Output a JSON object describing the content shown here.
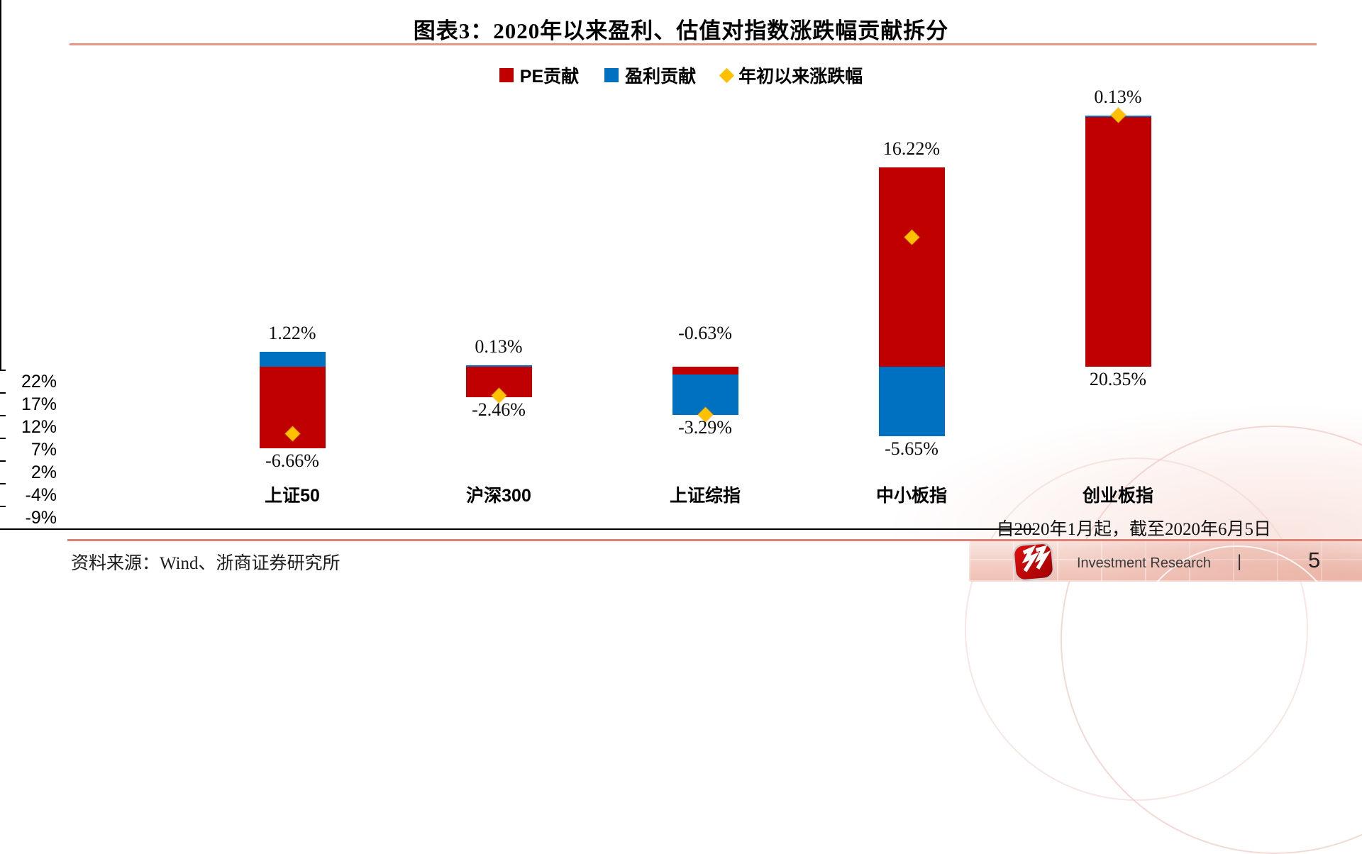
{
  "page": {
    "title": "图表3：2020年以来盈利、估值对指数涨跌幅贡献拆分",
    "note": "自2020年1月起，截至2020年6月5日",
    "source": "资料来源：Wind、浙商证券研究所",
    "footer": {
      "brand": "Investment Research",
      "divider": "|",
      "page_number": "5",
      "logo": "zheshang-securities-logo"
    }
  },
  "colors": {
    "pe": "#C00000",
    "earnings": "#0070C0",
    "ytd": "#FFC000",
    "rule_top": "#E59488",
    "rule_bottom": "#DC8176"
  },
  "chart_data": {
    "type": "bar",
    "stacked": true,
    "title": "图表3：2020年以来盈利、估值对指数涨跌幅贡献拆分",
    "categories": [
      "上证50",
      "沪深300",
      "上证综指",
      "中小板指",
      "创业板指"
    ],
    "series": [
      {
        "name": "PE贡献",
        "type": "bar",
        "color": "#C00000",
        "values": [
          -6.66,
          -2.46,
          -0.63,
          16.22,
          20.35
        ]
      },
      {
        "name": "盈利贡献",
        "type": "bar",
        "color": "#0070C0",
        "values": [
          1.22,
          0.13,
          -3.29,
          -5.65,
          0.13
        ]
      },
      {
        "name": "年初以来涨跌幅",
        "type": "scatter",
        "marker": "diamond",
        "color": "#FFC000",
        "values": [
          -5.44,
          -2.33,
          -3.92,
          10.57,
          20.48
        ]
      }
    ],
    "data_labels": [
      {
        "above": "1.22%",
        "below": "-6.66%"
      },
      {
        "above": "0.13%",
        "below": "-2.46%"
      },
      {
        "above": "-0.63%",
        "below": "-3.29%"
      },
      {
        "above": "16.22%",
        "below": "-5.65%"
      },
      {
        "above": "0.13%",
        "below": "20.35%"
      }
    ],
    "y_axis": {
      "ticks": [
        {
          "label": "22%",
          "value": 21.5
        },
        {
          "label": "17%",
          "value": 16.5
        },
        {
          "label": "12%",
          "value": 11.5
        },
        {
          "label": "7%",
          "value": 6.5
        },
        {
          "label": "2%",
          "value": 1.5
        },
        {
          "label": "-4%",
          "value": -3.5
        },
        {
          "label": "-9%",
          "value": -8.5
        }
      ],
      "min": -8.5,
      "max": 21.5,
      "grid": false
    },
    "legend": [
      {
        "label": "PE贡献",
        "marker": "square",
        "color": "#C00000"
      },
      {
        "label": "盈利贡献",
        "marker": "square",
        "color": "#0070C0"
      },
      {
        "label": "年初以来涨跌幅",
        "marker": "diamond",
        "color": "#FFC000"
      }
    ],
    "legend_position": "top"
  }
}
